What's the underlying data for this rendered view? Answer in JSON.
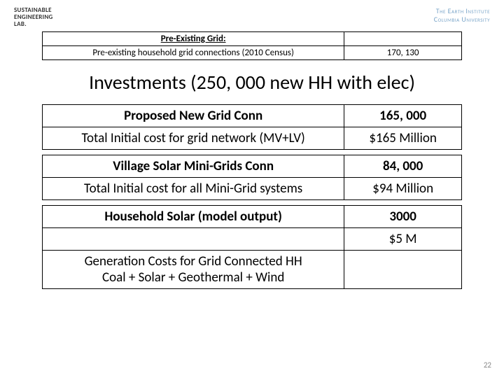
{
  "header": {
    "logo_left_l1": "SUSTAINABLE",
    "logo_left_l2": "ENGINEERING",
    "logo_left_l3": "LAB.",
    "logo_right_l1": "The Earth Institute",
    "logo_right_l2": "Columbia University"
  },
  "table1": {
    "header": "Pre-Existing Grid:",
    "row1_label": "Pre-existing household grid connections (2010 Census)",
    "row1_value": "170, 130"
  },
  "title": "Investments (250, 000 new HH with elec)",
  "table2": {
    "r1_label": "Proposed New Grid Conn",
    "r1_value": "165, 000",
    "r2_label": "Total Initial cost for grid network (MV+LV)",
    "r2_value": "$165 Million",
    "r3_label": "Village Solar Mini-Grids Conn",
    "r3_value": "84, 000",
    "r4_label": "Total Initial cost for all Mini-Grid systems",
    "r4_value": "$94 Million",
    "r5_label": "Household Solar (model output)",
    "r5_value": "3000",
    "r6_value": "$5 M",
    "r7_label_l1": "Generation Costs for Grid Connected HH",
    "r7_label_l2": "Coal + Solar + Geothermal + Wind"
  },
  "page_number": "22"
}
